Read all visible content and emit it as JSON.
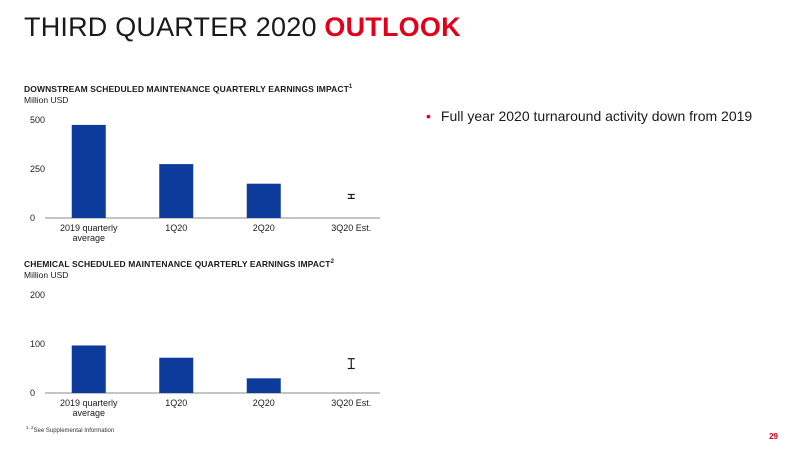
{
  "slide": {
    "title_main": "THIRD QUARTER 2020 ",
    "title_accent": "OUTLOOK",
    "bullet": "Full year 2020 turnaround activity down from 2019",
    "footnote_sup": "1, 2",
    "footnote_text": "See Supplemental Information",
    "page_number": "29"
  },
  "colors": {
    "bar": "#0d3b9c",
    "accent": "#e3001b",
    "axis": "#888888"
  },
  "chart_data": [
    {
      "type": "bar",
      "title": "DOWNSTREAM SCHEDULED MAINTENANCE QUARTERLY EARNINGS IMPACT",
      "title_sup": "1",
      "ylabel": "Million USD",
      "categories": [
        "2019 quarterly average",
        "1Q20",
        "2Q20",
        "3Q20 Est."
      ],
      "values": [
        475,
        275,
        175,
        null
      ],
      "estimate_range": [
        100,
        120
      ],
      "ylim": [
        0,
        500
      ],
      "yticks": [
        "0",
        "250",
        "500"
      ],
      "ytick_values": [
        0,
        250,
        500
      ]
    },
    {
      "type": "bar",
      "title": "CHEMICAL SCHEDULED MAINTENANCE QUARTERLY EARNINGS IMPACT",
      "title_sup": "2",
      "ylabel": "Million USD",
      "categories": [
        "2019 quarterly average",
        "1Q20",
        "2Q20",
        "3Q20 Est."
      ],
      "values": [
        97,
        72,
        30,
        null
      ],
      "estimate_range": [
        50,
        70
      ],
      "ylim": [
        0,
        200
      ],
      "yticks": [
        "0",
        "100",
        "200"
      ],
      "ytick_values": [
        0,
        100,
        200
      ]
    }
  ]
}
